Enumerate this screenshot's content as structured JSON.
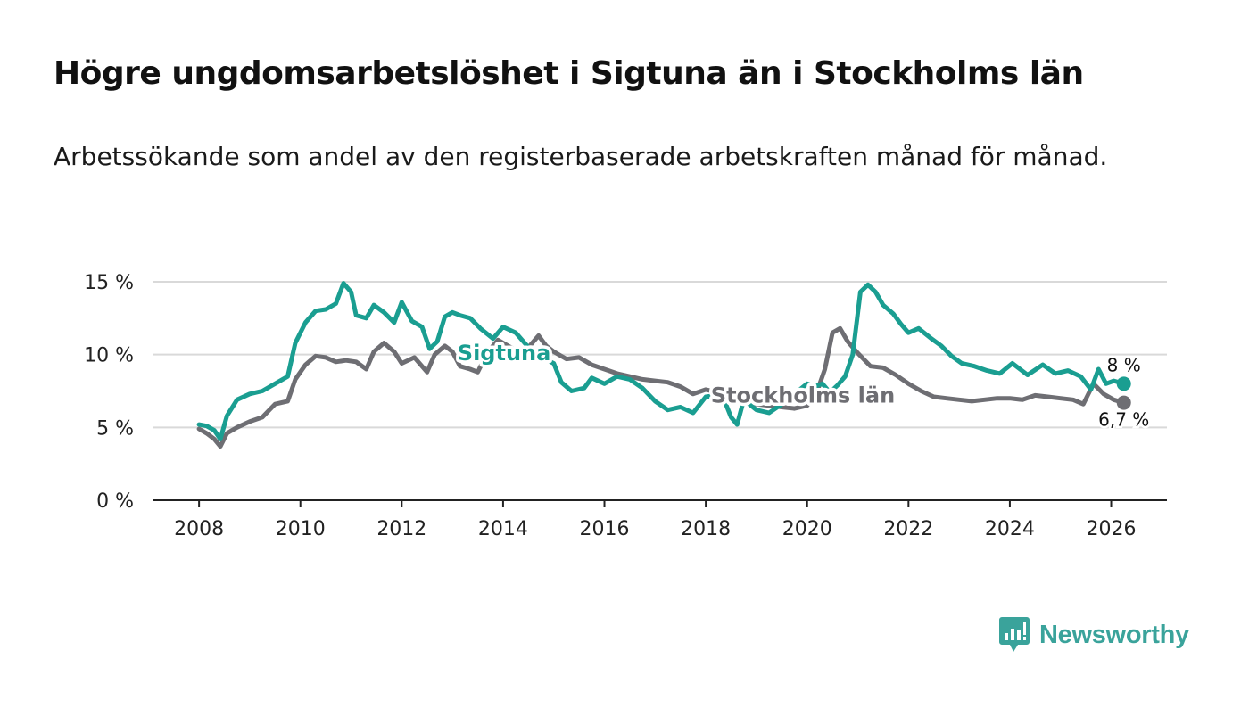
{
  "title": "Högre ungdomsarbetslöshet i Sigtuna än i Stockholms län",
  "subtitle": "Arbetssökande som andel av den registerbaserade arbetskraften månad för månad.",
  "brand": {
    "name": "Newsworthy",
    "color": "#3aa39b",
    "icon": "bar-chart-speech-icon"
  },
  "chart_data": {
    "type": "line",
    "title": "Högre ungdomsarbetslöshet i Sigtuna än i Stockholms län",
    "xlabel": "",
    "ylabel": "",
    "x_ticks": [
      2008,
      2010,
      2012,
      2014,
      2016,
      2018,
      2020,
      2022,
      2024,
      2026
    ],
    "x_tick_labels": [
      "2008",
      "2010",
      "2012",
      "2014",
      "2016",
      "2018",
      "2020",
      "2022",
      "2024",
      "2026"
    ],
    "xlim": [
      2007.1,
      2027.1
    ],
    "y_ticks": [
      0,
      5,
      10,
      15
    ],
    "y_tick_labels": [
      "0 %",
      "5 %",
      "10 %",
      "15 %"
    ],
    "ylim": [
      0,
      15
    ],
    "grid": "horizontal",
    "series": [
      {
        "name": "Stockholms län",
        "color": "#6e6e73",
        "label_at": [
          2018.1,
          6.7
        ],
        "end_label": "6,7 %",
        "points": [
          [
            2008.0,
            4.9
          ],
          [
            2008.15,
            4.6
          ],
          [
            2008.3,
            4.2
          ],
          [
            2008.42,
            3.7
          ],
          [
            2008.55,
            4.6
          ],
          [
            2008.75,
            5.0
          ],
          [
            2009.0,
            5.4
          ],
          [
            2009.25,
            5.7
          ],
          [
            2009.5,
            6.6
          ],
          [
            2009.75,
            6.8
          ],
          [
            2009.9,
            8.3
          ],
          [
            2010.1,
            9.3
          ],
          [
            2010.3,
            9.9
          ],
          [
            2010.5,
            9.8
          ],
          [
            2010.7,
            9.5
          ],
          [
            2010.9,
            9.6
          ],
          [
            2011.1,
            9.5
          ],
          [
            2011.3,
            9.0
          ],
          [
            2011.45,
            10.2
          ],
          [
            2011.65,
            10.8
          ],
          [
            2011.85,
            10.2
          ],
          [
            2012.0,
            9.4
          ],
          [
            2012.25,
            9.8
          ],
          [
            2012.5,
            8.8
          ],
          [
            2012.65,
            10.0
          ],
          [
            2012.85,
            10.6
          ],
          [
            2013.0,
            10.2
          ],
          [
            2013.15,
            9.2
          ],
          [
            2013.35,
            9.0
          ],
          [
            2013.5,
            8.8
          ],
          [
            2013.7,
            10.2
          ],
          [
            2013.9,
            11.0
          ],
          [
            2014.1,
            10.6
          ],
          [
            2014.3,
            10.2
          ],
          [
            2014.5,
            10.5
          ],
          [
            2014.7,
            11.3
          ],
          [
            2014.85,
            10.6
          ],
          [
            2015.0,
            10.2
          ],
          [
            2015.25,
            9.7
          ],
          [
            2015.5,
            9.8
          ],
          [
            2015.75,
            9.3
          ],
          [
            2016.0,
            9.0
          ],
          [
            2016.25,
            8.7
          ],
          [
            2016.5,
            8.5
          ],
          [
            2016.75,
            8.3
          ],
          [
            2017.0,
            8.2
          ],
          [
            2017.25,
            8.1
          ],
          [
            2017.5,
            7.8
          ],
          [
            2017.75,
            7.3
          ],
          [
            2018.0,
            7.6
          ],
          [
            2018.25,
            7.4
          ],
          [
            2018.5,
            7.1
          ],
          [
            2018.75,
            6.8
          ],
          [
            2019.0,
            6.6
          ],
          [
            2019.25,
            6.5
          ],
          [
            2019.5,
            6.4
          ],
          [
            2019.75,
            6.3
          ],
          [
            2020.0,
            6.5
          ],
          [
            2020.2,
            7.5
          ],
          [
            2020.35,
            9.0
          ],
          [
            2020.5,
            11.5
          ],
          [
            2020.65,
            11.8
          ],
          [
            2020.8,
            10.9
          ],
          [
            2021.0,
            10.1
          ],
          [
            2021.25,
            9.2
          ],
          [
            2021.5,
            9.1
          ],
          [
            2021.75,
            8.6
          ],
          [
            2022.0,
            8.0
          ],
          [
            2022.25,
            7.5
          ],
          [
            2022.5,
            7.1
          ],
          [
            2022.75,
            7.0
          ],
          [
            2023.0,
            6.9
          ],
          [
            2023.25,
            6.8
          ],
          [
            2023.5,
            6.9
          ],
          [
            2023.75,
            7.0
          ],
          [
            2024.0,
            7.0
          ],
          [
            2024.25,
            6.9
          ],
          [
            2024.5,
            7.2
          ],
          [
            2024.75,
            7.1
          ],
          [
            2025.0,
            7.0
          ],
          [
            2025.25,
            6.9
          ],
          [
            2025.45,
            6.6
          ],
          [
            2025.65,
            8.0
          ],
          [
            2025.85,
            7.3
          ],
          [
            2026.05,
            6.9
          ],
          [
            2026.25,
            6.7
          ]
        ]
      },
      {
        "name": "Sigtuna",
        "color": "#1a9e91",
        "label_at": [
          2013.1,
          9.6
        ],
        "end_label": "8 %",
        "points": [
          [
            2008.0,
            5.2
          ],
          [
            2008.15,
            5.1
          ],
          [
            2008.3,
            4.8
          ],
          [
            2008.42,
            4.2
          ],
          [
            2008.55,
            5.8
          ],
          [
            2008.75,
            6.9
          ],
          [
            2009.0,
            7.3
          ],
          [
            2009.25,
            7.5
          ],
          [
            2009.5,
            8.0
          ],
          [
            2009.75,
            8.5
          ],
          [
            2009.9,
            10.8
          ],
          [
            2010.1,
            12.2
          ],
          [
            2010.3,
            13.0
          ],
          [
            2010.5,
            13.1
          ],
          [
            2010.7,
            13.5
          ],
          [
            2010.85,
            14.9
          ],
          [
            2011.0,
            14.3
          ],
          [
            2011.1,
            12.7
          ],
          [
            2011.3,
            12.5
          ],
          [
            2011.45,
            13.4
          ],
          [
            2011.65,
            12.9
          ],
          [
            2011.85,
            12.2
          ],
          [
            2012.0,
            13.6
          ],
          [
            2012.2,
            12.3
          ],
          [
            2012.4,
            11.9
          ],
          [
            2012.55,
            10.4
          ],
          [
            2012.7,
            10.9
          ],
          [
            2012.85,
            12.6
          ],
          [
            2013.0,
            12.9
          ],
          [
            2013.15,
            12.7
          ],
          [
            2013.35,
            12.5
          ],
          [
            2013.55,
            11.8
          ],
          [
            2013.8,
            11.1
          ],
          [
            2014.0,
            11.9
          ],
          [
            2014.25,
            11.5
          ],
          [
            2014.5,
            10.5
          ],
          [
            2014.75,
            9.8
          ],
          [
            2015.0,
            9.4
          ],
          [
            2015.15,
            8.1
          ],
          [
            2015.35,
            7.5
          ],
          [
            2015.6,
            7.7
          ],
          [
            2015.75,
            8.4
          ],
          [
            2016.0,
            8.0
          ],
          [
            2016.25,
            8.5
          ],
          [
            2016.5,
            8.3
          ],
          [
            2016.75,
            7.7
          ],
          [
            2017.0,
            6.8
          ],
          [
            2017.25,
            6.2
          ],
          [
            2017.5,
            6.4
          ],
          [
            2017.75,
            6.0
          ],
          [
            2018.0,
            7.1
          ],
          [
            2018.2,
            7.2
          ],
          [
            2018.35,
            7.0
          ],
          [
            2018.5,
            5.7
          ],
          [
            2018.62,
            5.2
          ],
          [
            2018.75,
            6.9
          ],
          [
            2019.0,
            6.2
          ],
          [
            2019.25,
            6.0
          ],
          [
            2019.5,
            6.6
          ],
          [
            2019.75,
            7.3
          ],
          [
            2020.0,
            8.0
          ],
          [
            2020.15,
            7.8
          ],
          [
            2020.3,
            8.0
          ],
          [
            2020.45,
            7.4
          ],
          [
            2020.6,
            7.9
          ],
          [
            2020.75,
            8.5
          ],
          [
            2020.9,
            10.0
          ],
          [
            2021.05,
            14.3
          ],
          [
            2021.2,
            14.8
          ],
          [
            2021.35,
            14.3
          ],
          [
            2021.5,
            13.4
          ],
          [
            2021.7,
            12.8
          ],
          [
            2021.85,
            12.1
          ],
          [
            2022.0,
            11.5
          ],
          [
            2022.2,
            11.8
          ],
          [
            2022.45,
            11.1
          ],
          [
            2022.65,
            10.6
          ],
          [
            2022.85,
            9.9
          ],
          [
            2023.05,
            9.4
          ],
          [
            2023.3,
            9.2
          ],
          [
            2023.55,
            8.9
          ],
          [
            2023.8,
            8.7
          ],
          [
            2024.05,
            9.4
          ],
          [
            2024.35,
            8.6
          ],
          [
            2024.65,
            9.3
          ],
          [
            2024.9,
            8.7
          ],
          [
            2025.15,
            8.9
          ],
          [
            2025.4,
            8.5
          ],
          [
            2025.6,
            7.6
          ],
          [
            2025.75,
            9.0
          ],
          [
            2025.9,
            8.0
          ],
          [
            2026.05,
            8.2
          ],
          [
            2026.25,
            8.0
          ]
        ]
      }
    ]
  }
}
